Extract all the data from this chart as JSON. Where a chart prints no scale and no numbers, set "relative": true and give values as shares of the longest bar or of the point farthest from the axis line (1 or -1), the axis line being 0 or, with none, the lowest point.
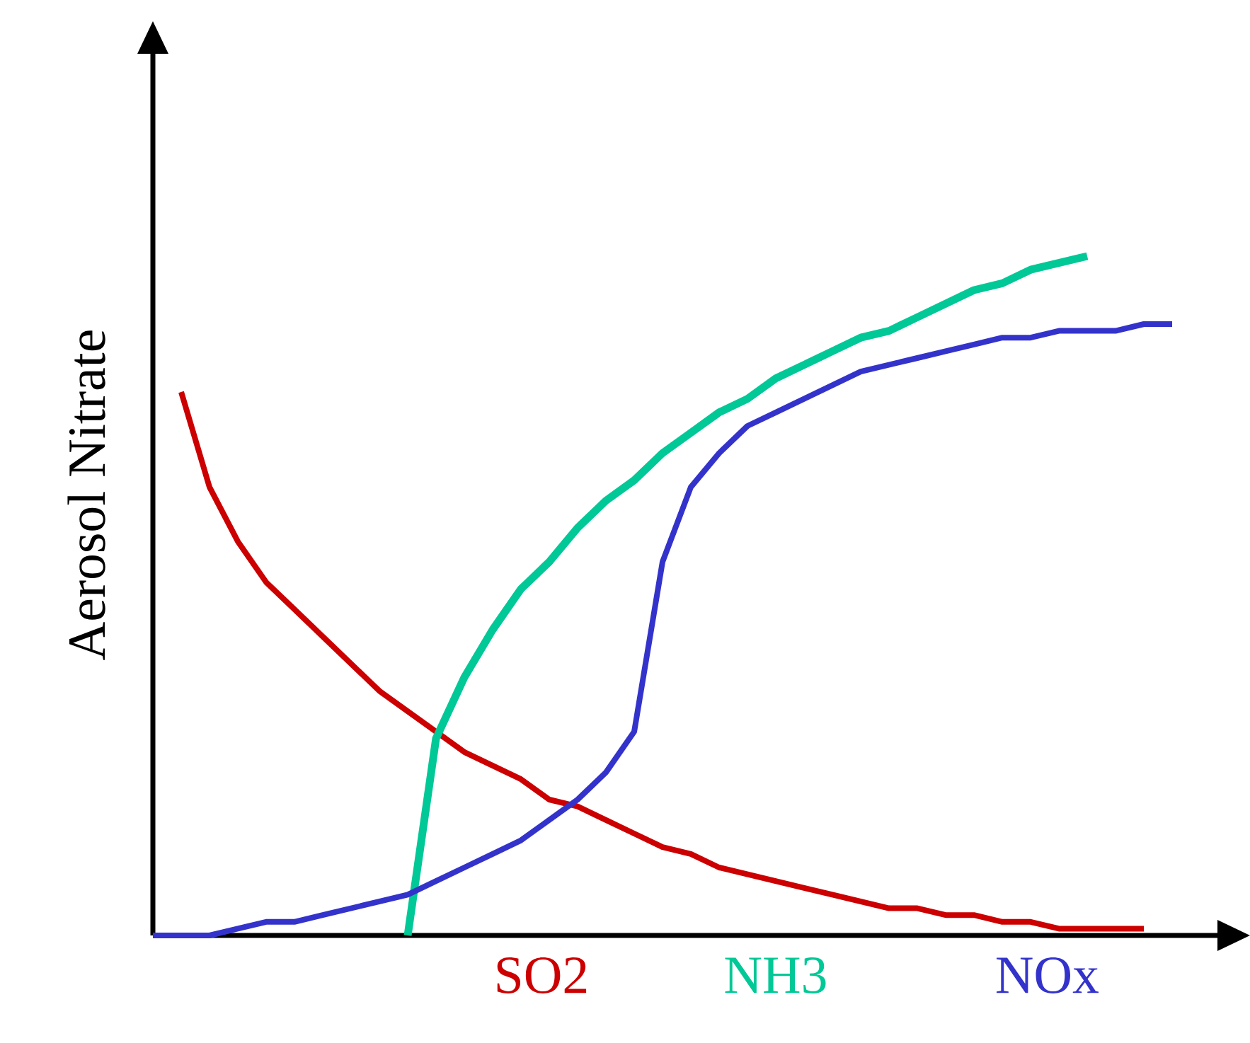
{
  "chart_data": {
    "type": "line",
    "relative": true,
    "ylabel": "Aerosol Nitrate",
    "categories": [
      null,
      null,
      null,
      null,
      null,
      null,
      null,
      null,
      null,
      null,
      null,
      null,
      null,
      null,
      null,
      null,
      null,
      null,
      null,
      null,
      null,
      null,
      null,
      null,
      null,
      null,
      null,
      null,
      null,
      null,
      null,
      null,
      null,
      null,
      null,
      null,
      null
    ],
    "series": [
      {
        "name": "SO2",
        "color": "#cc0000",
        "values": [
          null,
          0.8,
          0.66,
          0.58,
          0.52,
          0.48,
          0.44,
          0.4,
          0.36,
          0.33,
          0.3,
          0.27,
          0.25,
          0.23,
          0.2,
          0.19,
          0.17,
          0.15,
          0.13,
          0.12,
          0.1,
          0.09,
          0.08,
          0.07,
          0.06,
          0.05,
          0.04,
          0.04,
          0.03,
          0.03,
          0.02,
          0.02,
          0.01,
          0.01,
          0.01,
          0.01,
          null
        ]
      },
      {
        "name": "NH3",
        "color": "#00c896",
        "values": [
          null,
          null,
          null,
          null,
          null,
          null,
          null,
          null,
          null,
          0,
          0.29,
          0.38,
          0.45,
          0.51,
          0.55,
          0.6,
          0.64,
          0.67,
          0.71,
          0.74,
          0.77,
          0.79,
          0.82,
          0.84,
          0.86,
          0.88,
          0.89,
          0.91,
          0.93,
          0.95,
          0.96,
          0.98,
          0.99,
          1.0,
          null,
          null,
          null
        ]
      },
      {
        "name": "NOx",
        "color": "#3333cc",
        "values": [
          0,
          0.0,
          0.0,
          0.01,
          0.02,
          0.02,
          0.03,
          0.04,
          0.05,
          0.06,
          0.08,
          0.1,
          0.12,
          0.14,
          0.17,
          0.2,
          0.24,
          0.3,
          0.55,
          0.66,
          0.71,
          0.75,
          0.77,
          0.79,
          0.81,
          0.83,
          0.84,
          0.85,
          0.86,
          0.87,
          0.88,
          0.88,
          0.89,
          0.89,
          0.89,
          0.9,
          0.9
        ]
      }
    ]
  }
}
